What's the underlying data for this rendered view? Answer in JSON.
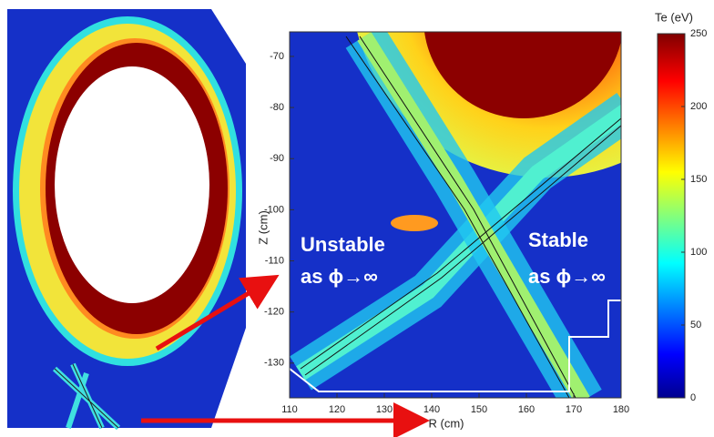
{
  "chart_data": {
    "type": "heatmap",
    "xlabel": "R (cm)",
    "ylabel": "Z (cm)",
    "xlim": [
      110,
      180
    ],
    "xticks": [
      110,
      120,
      130,
      140,
      150,
      160,
      170,
      180
    ],
    "ylim": [
      -136.8,
      -65.2
    ],
    "yticks": [
      -70,
      -80,
      -90,
      -100,
      -110,
      -120,
      -130
    ],
    "colorbar": {
      "label": "Te (eV)",
      "lim": [
        0,
        250
      ],
      "ticks": [
        0,
        50,
        100,
        150,
        200,
        250
      ]
    },
    "annotations": [
      "Unstable",
      "as ϕ→∞",
      "Stable",
      "as ϕ→∞"
    ]
  }
}
